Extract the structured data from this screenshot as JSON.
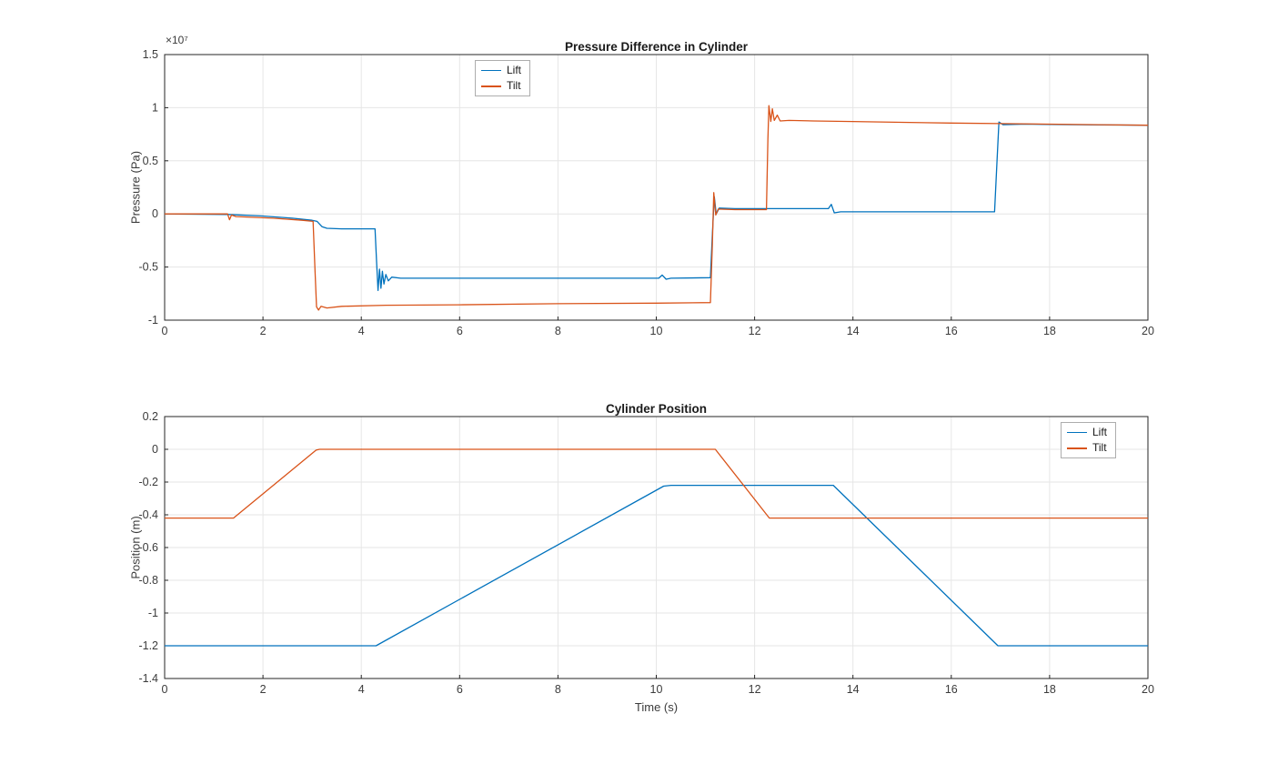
{
  "figure": {
    "background": "#ffffff"
  },
  "colors": {
    "lift": "#0072BD",
    "tilt": "#D95319",
    "axis": "#262626",
    "grid": "#e6e6e6",
    "text": "#3b3b3b"
  },
  "chart_data": [
    {
      "type": "line",
      "title": "Pressure Difference in Cylinder",
      "ylabel": "Pressure (Pa)",
      "xlabel": "",
      "y_exponent": "×10⁷",
      "y_multiplier": 10000000,
      "xlim": [
        0,
        20
      ],
      "ylim": [
        -1,
        1.5
      ],
      "xticks": [
        0,
        2,
        4,
        6,
        8,
        10,
        12,
        14,
        16,
        18,
        20
      ],
      "yticks": [
        -1,
        -0.5,
        0,
        0.5,
        1,
        1.5
      ],
      "grid": true,
      "legend_position": "top-center",
      "series": [
        {
          "name": "Lift",
          "color": "#0072BD",
          "points": [
            [
              0,
              0
            ],
            [
              1.3,
              -0.005
            ],
            [
              2,
              -0.02
            ],
            [
              2.6,
              -0.04
            ],
            [
              3.0,
              -0.06
            ],
            [
              3.1,
              -0.07
            ],
            [
              3.2,
              -0.12
            ],
            [
              3.3,
              -0.135
            ],
            [
              3.6,
              -0.14
            ],
            [
              4.28,
              -0.14
            ],
            [
              4.31,
              -0.45
            ],
            [
              4.34,
              -0.72
            ],
            [
              4.37,
              -0.52
            ],
            [
              4.4,
              -0.7
            ],
            [
              4.43,
              -0.54
            ],
            [
              4.46,
              -0.66
            ],
            [
              4.5,
              -0.57
            ],
            [
              4.55,
              -0.63
            ],
            [
              4.62,
              -0.595
            ],
            [
              4.8,
              -0.605
            ],
            [
              10.05,
              -0.605
            ],
            [
              10.12,
              -0.575
            ],
            [
              10.2,
              -0.615
            ],
            [
              10.3,
              -0.605
            ],
            [
              11.1,
              -0.6
            ],
            [
              11.14,
              -0.2
            ],
            [
              11.18,
              0.16
            ],
            [
              11.22,
              0.0
            ],
            [
              11.28,
              0.055
            ],
            [
              11.6,
              0.05
            ],
            [
              13.5,
              0.05
            ],
            [
              13.56,
              0.09
            ],
            [
              13.62,
              0.01
            ],
            [
              13.75,
              0.02
            ],
            [
              16.88,
              0.02
            ],
            [
              16.93,
              0.5
            ],
            [
              16.97,
              0.865
            ],
            [
              17.05,
              0.84
            ],
            [
              17.5,
              0.845
            ],
            [
              18.5,
              0.84
            ],
            [
              20,
              0.835
            ]
          ]
        },
        {
          "name": "Tilt",
          "color": "#D95319",
          "points": [
            [
              0,
              0
            ],
            [
              1.28,
              0
            ],
            [
              1.32,
              -0.055
            ],
            [
              1.36,
              -0.01
            ],
            [
              1.45,
              -0.025
            ],
            [
              2.2,
              -0.04
            ],
            [
              2.8,
              -0.06
            ],
            [
              3.02,
              -0.07
            ],
            [
              3.06,
              -0.55
            ],
            [
              3.09,
              -0.875
            ],
            [
              3.13,
              -0.905
            ],
            [
              3.18,
              -0.87
            ],
            [
              3.3,
              -0.885
            ],
            [
              3.6,
              -0.87
            ],
            [
              4.5,
              -0.86
            ],
            [
              6,
              -0.855
            ],
            [
              8,
              -0.845
            ],
            [
              10,
              -0.84
            ],
            [
              11.1,
              -0.835
            ],
            [
              11.14,
              -0.3
            ],
            [
              11.17,
              0.2
            ],
            [
              11.21,
              -0.01
            ],
            [
              11.26,
              0.045
            ],
            [
              11.6,
              0.04
            ],
            [
              12.24,
              0.04
            ],
            [
              12.27,
              0.7
            ],
            [
              12.29,
              1.02
            ],
            [
              12.33,
              0.87
            ],
            [
              12.36,
              0.99
            ],
            [
              12.4,
              0.88
            ],
            [
              12.46,
              0.93
            ],
            [
              12.52,
              0.875
            ],
            [
              12.7,
              0.88
            ],
            [
              13.2,
              0.875
            ],
            [
              14,
              0.87
            ],
            [
              15,
              0.862
            ],
            [
              16,
              0.855
            ],
            [
              17,
              0.85
            ],
            [
              18,
              0.845
            ],
            [
              19,
              0.84
            ],
            [
              20,
              0.835
            ]
          ]
        }
      ]
    },
    {
      "type": "line",
      "title": "Cylinder Position",
      "ylabel": "Position (m)",
      "xlabel": "Time (s)",
      "xlim": [
        0,
        20
      ],
      "ylim": [
        -1.4,
        0.2
      ],
      "xticks": [
        0,
        2,
        4,
        6,
        8,
        10,
        12,
        14,
        16,
        18,
        20
      ],
      "yticks": [
        -1.4,
        -1.2,
        -1,
        -0.8,
        -0.6,
        -0.4,
        -0.2,
        0,
        0.2
      ],
      "grid": true,
      "legend_position": "top-right",
      "series": [
        {
          "name": "Lift",
          "color": "#0072BD",
          "points": [
            [
              0,
              -1.2
            ],
            [
              4.3,
              -1.2
            ],
            [
              10.15,
              -0.225
            ],
            [
              10.3,
              -0.22
            ],
            [
              13.6,
              -0.22
            ],
            [
              16.95,
              -1.2
            ],
            [
              20,
              -1.2
            ]
          ]
        },
        {
          "name": "Tilt",
          "color": "#D95319",
          "points": [
            [
              0,
              -0.42
            ],
            [
              1.4,
              -0.42
            ],
            [
              3.08,
              -0.005
            ],
            [
              3.15,
              0
            ],
            [
              11.2,
              0
            ],
            [
              12.3,
              -0.42
            ],
            [
              20,
              -0.42
            ]
          ]
        }
      ]
    }
  ]
}
